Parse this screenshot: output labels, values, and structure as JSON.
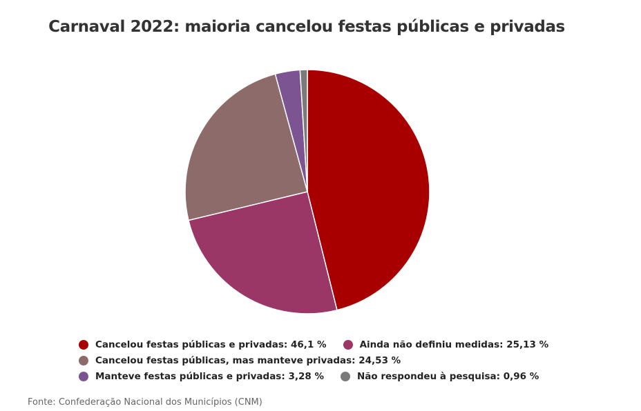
{
  "chart_data": {
    "type": "pie",
    "title": "Carnaval 2022: maioria cancelou festas públicas e privadas",
    "source": "Fonte: Confederação Nacional dos Municípios (CNM)",
    "start_angle_deg": 0,
    "direction": "clockwise",
    "slices": [
      {
        "label": "Cancelou festas públicas e privadas",
        "value": 46.1,
        "display": "46,1 %",
        "color": "#a80000"
      },
      {
        "label": "Ainda não definiu medidas",
        "value": 25.13,
        "display": "25,13 %",
        "color": "#9b3766"
      },
      {
        "label": "Cancelou festas públicas, mas manteve privadas",
        "value": 24.53,
        "display": "24,53 %",
        "color": "#8e6b6b"
      },
      {
        "label": "Manteve festas públicas e privadas",
        "value": 3.28,
        "display": "3,28 %",
        "color": "#7b5491"
      },
      {
        "label": "Não respondeu à pesquisa",
        "value": 0.96,
        "display": "0,96 %",
        "color": "#7a7a7a"
      }
    ],
    "legend_rows": [
      [
        0,
        1
      ],
      [
        2
      ],
      [
        3,
        4
      ]
    ]
  }
}
